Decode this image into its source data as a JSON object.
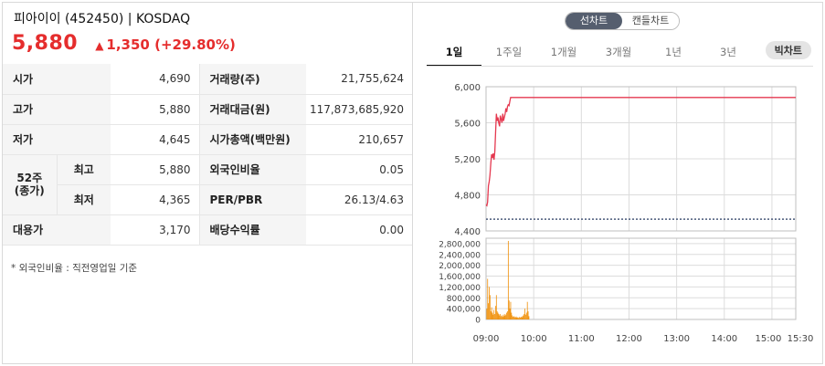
{
  "header": {
    "stock_name": "피아이이 (452450) | KOSDAQ",
    "price": "5,880",
    "change_amount": "1,350",
    "change_rate": "(+29.80%)",
    "up_color": "#e52d2d"
  },
  "info_table": {
    "open_label": "시가",
    "open_value": "4,690",
    "high_label": "고가",
    "high_value": "5,880",
    "low_label": "저가",
    "low_value": "4,645",
    "week52_label": "52주",
    "week52_sub": "(종가)",
    "week52_high_label": "최고",
    "week52_high_value": "5,880",
    "week52_low_label": "최저",
    "week52_low_value": "4,365",
    "substitute_label": "대용가",
    "substitute_value": "3,170",
    "volume_label": "거래량(주)",
    "volume_value": "21,755,624",
    "amount_label": "거래대금(원)",
    "amount_value": "117,873,685,920",
    "mcap_label": "시가총액(백만원)",
    "mcap_value": "210,657",
    "foreign_label": "외국인비율",
    "foreign_value": "0.05",
    "per_label": "PER/PBR",
    "per_value": "26.13/4.63",
    "dividend_label": "배당수익률",
    "dividend_value": "0.00"
  },
  "footnote": "* 외국인비율 : 직전영업일 기준",
  "chart_toggle": {
    "line_chart": "선차트",
    "candle_chart": "캔들차트"
  },
  "period_tabs": [
    "1일",
    "1주일",
    "1개월",
    "3개월",
    "1년",
    "3년"
  ],
  "big_chart_button": "빅차트",
  "chart_data": {
    "type": "line",
    "x_ticks": [
      "09:00",
      "10:00",
      "11:00",
      "12:00",
      "13:00",
      "14:00",
      "15:00",
      "15:30"
    ],
    "price": {
      "y_ticks": [
        "6,000",
        "5,600",
        "5,200",
        "4,800",
        "4,400"
      ],
      "ylim": [
        4400,
        6000
      ],
      "reference_line": 4530,
      "series": [
        {
          "x": [
            "09:00",
            "09:01",
            "09:02",
            "09:03",
            "09:04",
            "09:05",
            "09:06",
            "09:07",
            "09:08",
            "09:09",
            "09:10",
            "09:11",
            "09:12",
            "09:13",
            "09:14",
            "09:15",
            "09:16",
            "09:17",
            "09:18",
            "09:19",
            "09:20",
            "09:21",
            "09:22",
            "09:23",
            "09:24",
            "09:25",
            "09:26",
            "09:27",
            "09:28",
            "09:29",
            "09:30",
            "09:31",
            "09:32",
            "09:33",
            "15:30"
          ],
          "y": [
            4690,
            4680,
            4720,
            4900,
            4950,
            5020,
            5150,
            5250,
            5210,
            5260,
            5190,
            5280,
            5480,
            5700,
            5620,
            5660,
            5600,
            5560,
            5680,
            5640,
            5600,
            5700,
            5620,
            5660,
            5700,
            5760,
            5720,
            5780,
            5800,
            5790,
            5840,
            5880,
            5880,
            5880,
            5880
          ]
        }
      ]
    },
    "volume": {
      "y_ticks": [
        "2,800,000",
        "2,400,000",
        "2,000,000",
        "1,600,000",
        "1,200,000",
        "800,000",
        "400,000",
        "0"
      ],
      "ylim": [
        0,
        3000000
      ],
      "bars": [
        {
          "x": "09:01",
          "v": 400000
        },
        {
          "x": "09:02",
          "v": 1500000
        },
        {
          "x": "09:03",
          "v": 600000
        },
        {
          "x": "09:04",
          "v": 1200000
        },
        {
          "x": "09:05",
          "v": 900000
        },
        {
          "x": "09:06",
          "v": 300000
        },
        {
          "x": "09:07",
          "v": 450000
        },
        {
          "x": "09:08",
          "v": 250000
        },
        {
          "x": "09:09",
          "v": 180000
        },
        {
          "x": "09:10",
          "v": 350000
        },
        {
          "x": "09:11",
          "v": 200000
        },
        {
          "x": "09:12",
          "v": 500000
        },
        {
          "x": "09:13",
          "v": 900000
        },
        {
          "x": "09:14",
          "v": 300000
        },
        {
          "x": "09:15",
          "v": 250000
        },
        {
          "x": "09:16",
          "v": 200000
        },
        {
          "x": "09:17",
          "v": 150000
        },
        {
          "x": "09:18",
          "v": 200000
        },
        {
          "x": "09:19",
          "v": 120000
        },
        {
          "x": "09:20",
          "v": 150000
        },
        {
          "x": "09:21",
          "v": 100000
        },
        {
          "x": "09:22",
          "v": 180000
        },
        {
          "x": "09:23",
          "v": 130000
        },
        {
          "x": "09:24",
          "v": 200000
        },
        {
          "x": "09:25",
          "v": 160000
        },
        {
          "x": "09:26",
          "v": 250000
        },
        {
          "x": "09:27",
          "v": 300000
        },
        {
          "x": "09:28",
          "v": 2900000
        },
        {
          "x": "09:29",
          "v": 700000
        },
        {
          "x": "09:30",
          "v": 400000
        },
        {
          "x": "09:31",
          "v": 650000
        },
        {
          "x": "09:32",
          "v": 250000
        },
        {
          "x": "09:33",
          "v": 150000
        },
        {
          "x": "09:34",
          "v": 100000
        },
        {
          "x": "09:35",
          "v": 120000
        },
        {
          "x": "09:36",
          "v": 90000
        },
        {
          "x": "09:37",
          "v": 80000
        },
        {
          "x": "09:38",
          "v": 110000
        },
        {
          "x": "09:39",
          "v": 70000
        },
        {
          "x": "09:40",
          "v": 80000
        },
        {
          "x": "09:41",
          "v": 60000
        },
        {
          "x": "09:42",
          "v": 90000
        },
        {
          "x": "09:43",
          "v": 70000
        },
        {
          "x": "09:44",
          "v": 100000
        },
        {
          "x": "09:45",
          "v": 80000
        },
        {
          "x": "09:46",
          "v": 120000
        },
        {
          "x": "09:47",
          "v": 150000
        },
        {
          "x": "09:48",
          "v": 200000
        },
        {
          "x": "09:49",
          "v": 400000
        },
        {
          "x": "09:50",
          "v": 180000
        },
        {
          "x": "09:51",
          "v": 250000
        },
        {
          "x": "09:52",
          "v": 650000
        },
        {
          "x": "09:53",
          "v": 300000
        },
        {
          "x": "09:54",
          "v": 120000
        }
      ]
    },
    "line_color": "#e53950",
    "bar_color": "#f08c00",
    "reference_color": "#4a5a7a"
  }
}
